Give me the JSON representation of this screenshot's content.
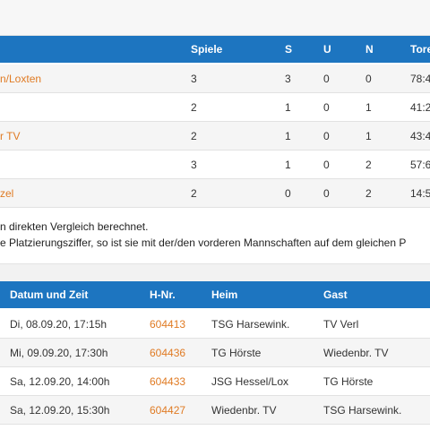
{
  "standings": {
    "columns": {
      "games": "Spiele",
      "wins": "S",
      "draws": "U",
      "losses": "N",
      "goals": "Tore"
    },
    "rows": [
      {
        "team": "n/Loxten",
        "games": "3",
        "wins": "3",
        "draws": "0",
        "losses": "0",
        "goals": "78:4",
        "link": true
      },
      {
        "team": "",
        "games": "2",
        "wins": "1",
        "draws": "0",
        "losses": "1",
        "goals": "41:2",
        "link": false
      },
      {
        "team": "r TV",
        "games": "2",
        "wins": "1",
        "draws": "0",
        "losses": "1",
        "goals": "43:4",
        "link": true
      },
      {
        "team": "",
        "games": "3",
        "wins": "1",
        "draws": "0",
        "losses": "2",
        "goals": "57:6",
        "link": false
      },
      {
        "team": "zel",
        "games": "2",
        "wins": "0",
        "draws": "0",
        "losses": "2",
        "goals": "14:5",
        "link": true
      }
    ]
  },
  "notes": {
    "line1": "n direkten Vergleich berechnet.",
    "line2": "e Platzierungsziffer, so ist sie mit der/den vorderen Mannschaften auf dem gleichen P"
  },
  "games": {
    "columns": {
      "datetime": "Datum und Zeit",
      "hnr": "H-Nr.",
      "home": "Heim",
      "guest": "Gast"
    },
    "rows": [
      {
        "datetime": "Di, 08.09.20, 17:15h",
        "hnr": "604413",
        "home": "TSG Harsewink.",
        "guest": "TV Verl"
      },
      {
        "datetime": "Mi, 09.09.20, 17:30h",
        "hnr": "604436",
        "home": "TG Hörste",
        "guest": "Wiedenbr. TV"
      },
      {
        "datetime": "Sa, 12.09.20, 14:00h",
        "hnr": "604433",
        "home": "JSG Hessel/Lox",
        "guest": "TG Hörste"
      },
      {
        "datetime": "Sa, 12.09.20, 15:30h",
        "hnr": "604427",
        "home": "Wiedenbr. TV",
        "guest": "TSG Harsewink."
      }
    ]
  }
}
